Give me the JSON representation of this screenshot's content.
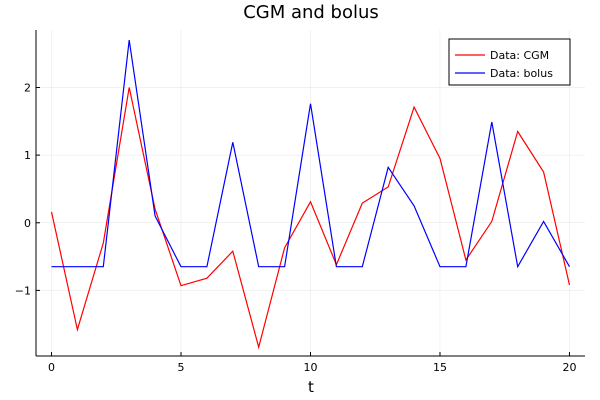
{
  "chart_data": {
    "type": "line",
    "title": "CGM and bolus",
    "xlabel": "t",
    "ylabel": "",
    "xlim": [
      -0.6,
      20.6
    ],
    "ylim": [
      -1.97,
      2.85
    ],
    "xticks": [
      0,
      5,
      10,
      15,
      20
    ],
    "xtick_labels": [
      "0",
      "5",
      "10",
      "15",
      "20"
    ],
    "yticks": [
      -1,
      0,
      1,
      2
    ],
    "ytick_labels": [
      "−1",
      "0",
      "1",
      "2"
    ],
    "grid": true,
    "legend_position": "top-right",
    "x": [
      0,
      1,
      2,
      3,
      4,
      5,
      6,
      7,
      8,
      9,
      10,
      11,
      12,
      13,
      14,
      15,
      16,
      17,
      18,
      19,
      20
    ],
    "series": [
      {
        "name": "Data: CGM",
        "color": "#ff0000",
        "values": [
          0.16,
          -1.58,
          -0.3,
          2.0,
          0.2,
          -0.93,
          -0.82,
          -0.42,
          -1.84,
          -0.37,
          0.31,
          -0.62,
          0.29,
          0.53,
          1.71,
          0.95,
          -0.55,
          0.02,
          1.35,
          0.75,
          -0.92
        ]
      },
      {
        "name": "Data: bolus",
        "color": "#0000ff",
        "values": [
          -0.65,
          -0.65,
          -0.65,
          2.7,
          0.1,
          -0.65,
          -0.65,
          1.19,
          -0.65,
          -0.65,
          1.76,
          -0.65,
          -0.65,
          0.82,
          0.25,
          -0.65,
          -0.65,
          1.49,
          -0.65,
          0.02,
          -0.65
        ]
      }
    ]
  }
}
